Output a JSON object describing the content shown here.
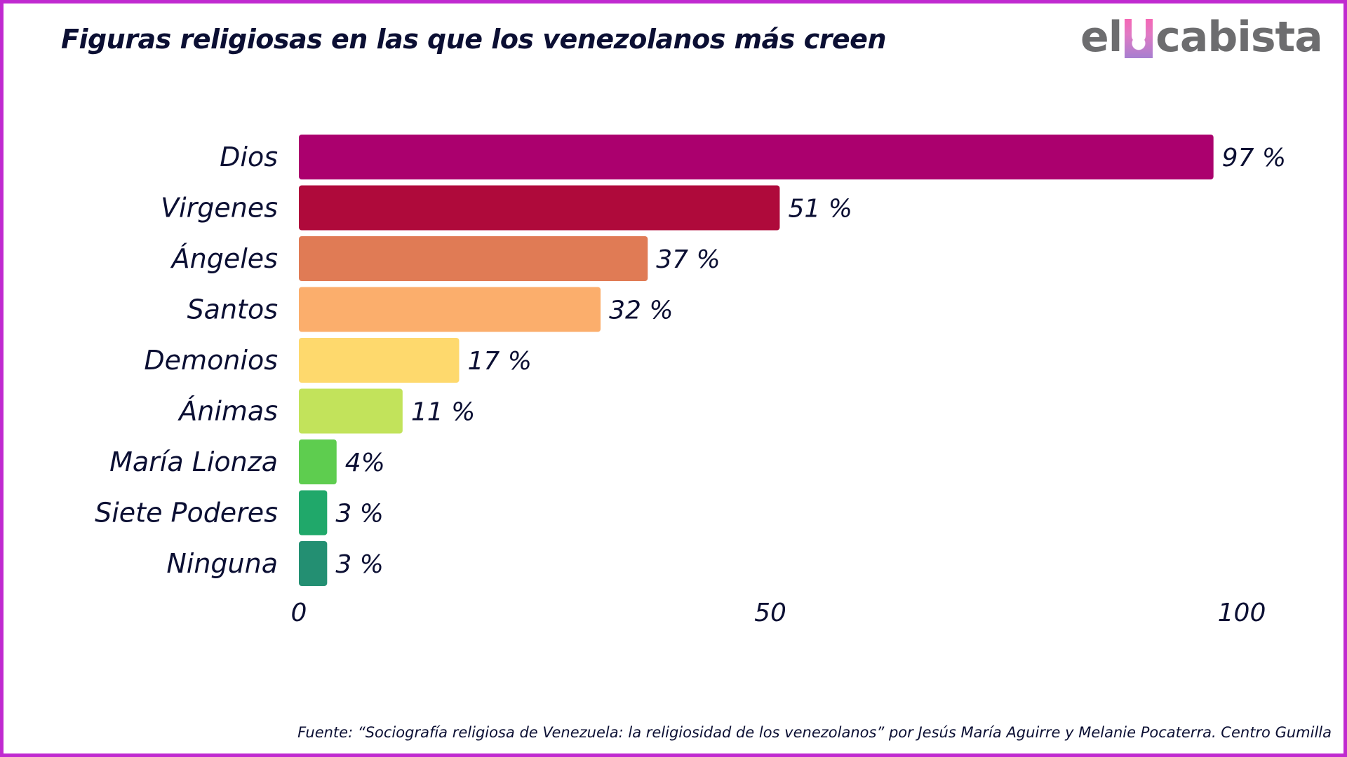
{
  "brand": {
    "logo_text_before": "el",
    "logo_text_after": "cabista",
    "frame_color": "#c02ad0"
  },
  "chart_data": {
    "type": "bar",
    "orientation": "horizontal",
    "title": "Figuras religiosas en las que los venezolanos más creen",
    "categories": [
      "Dios",
      "Virgenes",
      "Ángeles",
      "Santos",
      "Demonios",
      "Ánimas",
      "María Lionza",
      "Siete Poderes",
      "Ninguna"
    ],
    "values": [
      97,
      51,
      37,
      32,
      17,
      11,
      4,
      3,
      3
    ],
    "value_labels": [
      "97 %",
      "51 %",
      "37 %",
      "32 %",
      "17 %",
      "11 %",
      "4%",
      "3 %",
      "3 %"
    ],
    "colors": [
      "#ab006e",
      "#af0a3b",
      "#e07b55",
      "#fbae6c",
      "#fed96d",
      "#c2e35b",
      "#5ecd4f",
      "#20a86a",
      "#238f72"
    ],
    "xlabel": "",
    "ylabel": "",
    "xlim": [
      0,
      100
    ],
    "xticks": [
      0,
      50,
      100
    ],
    "xtick_labels": [
      "0",
      "50",
      "100"
    ],
    "grid": false,
    "legend": "none"
  },
  "source": "Fuente: “Sociografía religiosa de Venezuela: la religiosidad de los venezolanos” por Jesús María Aguirre y Melanie Pocaterra. Centro Gumilla"
}
